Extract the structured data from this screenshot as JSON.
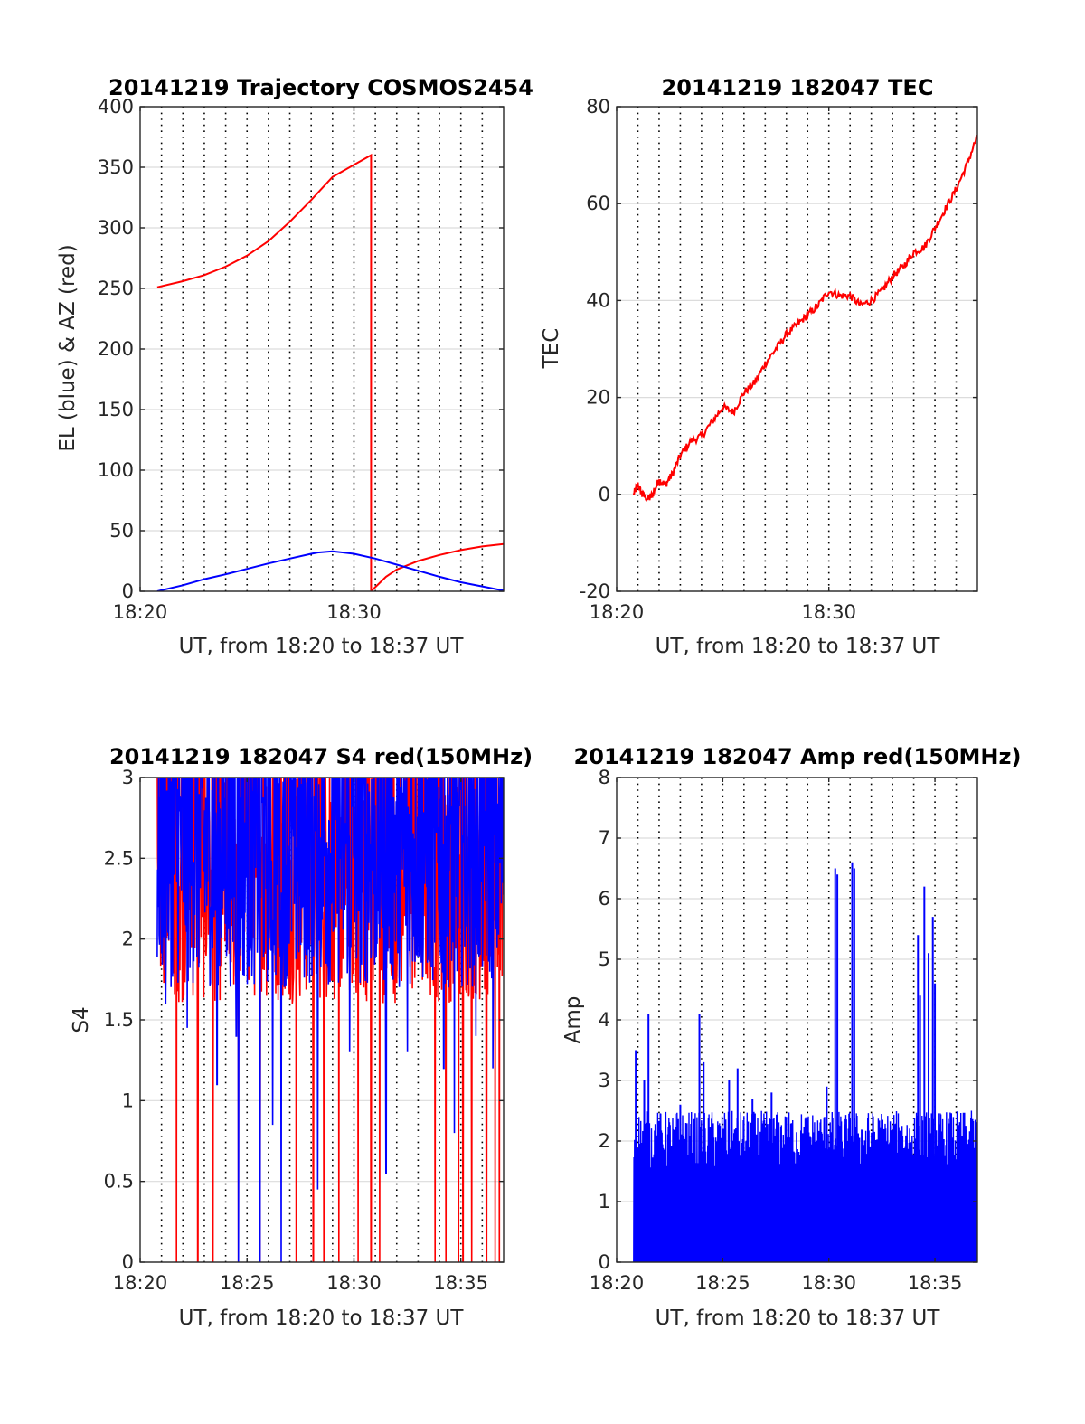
{
  "chart_data": [
    {
      "type": "line",
      "title": "20141219 Trajectory COSMOS2454",
      "xlabel": "UT, from 18:20 to 18:37 UT",
      "ylabel": "EL (blue) & AZ (red)",
      "xlim_minutes": [
        1100,
        1117
      ],
      "ylim": [
        0,
        400
      ],
      "xticks": [
        {
          "value": 1100,
          "label": "18:20"
        },
        {
          "value": 1110,
          "label": "18:30"
        }
      ],
      "yticks": [
        {
          "value": 0,
          "label": "0"
        },
        {
          "value": 50,
          "label": "50"
        },
        {
          "value": 100,
          "label": "100"
        },
        {
          "value": 150,
          "label": "150"
        },
        {
          "value": 200,
          "label": "200"
        },
        {
          "value": 250,
          "label": "250"
        },
        {
          "value": 300,
          "label": "300"
        },
        {
          "value": 350,
          "label": "350"
        },
        {
          "value": 400,
          "label": "400"
        }
      ],
      "grid": "horizontal solid, vertical dotted every 1 minute",
      "series": [
        {
          "color": "#ff0000",
          "x": [
            1100.8,
            1102,
            1103,
            1104,
            1105,
            1106,
            1107,
            1108,
            1109,
            1110,
            1110.8,
            1110.8,
            1111.5,
            1112,
            1113,
            1114,
            1115,
            1116,
            1117
          ],
          "y": [
            251,
            256,
            261,
            268,
            277,
            289,
            305,
            323,
            342,
            352,
            360,
            0,
            12,
            18,
            25,
            30,
            34,
            37,
            39
          ]
        },
        {
          "color": "#0000ff",
          "x": [
            1100.8,
            1102,
            1103,
            1104,
            1105,
            1106,
            1107,
            1108,
            1108.3,
            1109,
            1110,
            1111,
            1112,
            1113,
            1114,
            1115,
            1116,
            1117
          ],
          "y": [
            0,
            5,
            10,
            14,
            18.5,
            23,
            27,
            31,
            32,
            33,
            31,
            27,
            22,
            17,
            12,
            7.5,
            4,
            0.5
          ]
        }
      ]
    },
    {
      "type": "line",
      "title": "20141219 182047 TEC",
      "xlabel": "UT, from 18:20 to 18:37 UT",
      "ylabel": "TEC",
      "xlim_minutes": [
        1100,
        1117
      ],
      "ylim": [
        -20,
        80
      ],
      "xticks": [
        {
          "value": 1100,
          "label": "18:20"
        },
        {
          "value": 1110,
          "label": "18:30"
        }
      ],
      "yticks": [
        {
          "value": -20,
          "label": "-20"
        },
        {
          "value": 0,
          "label": "0"
        },
        {
          "value": 20,
          "label": "20"
        },
        {
          "value": 40,
          "label": "40"
        },
        {
          "value": 60,
          "label": "60"
        },
        {
          "value": 80,
          "label": "80"
        }
      ],
      "grid": "horizontal solid, vertical dotted every 1 minute",
      "series": [
        {
          "color": "#ff0000",
          "x": [
            1100.8,
            1101,
            1101.2,
            1101.5,
            1101.7,
            1102,
            1102.3,
            1102.6,
            1103,
            1103.5,
            1104,
            1104.5,
            1105,
            1105.5,
            1106,
            1106.5,
            1107,
            1107.5,
            1108,
            1108.5,
            1109,
            1109.5,
            1110,
            1110.5,
            1111,
            1111.5,
            1112,
            1112.5,
            1113,
            1113.5,
            1114,
            1114.5,
            1115,
            1115.5,
            1116,
            1116.5,
            1117
          ],
          "y": [
            0,
            2,
            0,
            -1,
            0,
            3,
            2,
            4,
            8,
            11,
            12,
            15,
            18,
            17,
            21,
            23,
            27,
            30,
            33,
            35,
            37,
            39,
            42,
            41,
            41,
            39,
            40,
            42,
            45,
            47,
            50,
            51,
            55,
            59,
            63,
            68,
            74
          ]
        }
      ]
    },
    {
      "type": "line",
      "title": "20141219 182047 S4 red(150MHz)",
      "xlabel": "UT, from 18:20 to 18:37 UT",
      "ylabel": "S4",
      "xlim_minutes": [
        1100,
        1117
      ],
      "ylim": [
        0,
        3
      ],
      "xticks": [
        {
          "value": 1100,
          "label": "18:20"
        },
        {
          "value": 1105,
          "label": "18:25"
        },
        {
          "value": 1110,
          "label": "18:30"
        },
        {
          "value": 1115,
          "label": "18:35"
        }
      ],
      "yticks": [
        {
          "value": 0,
          "label": "0"
        },
        {
          "value": 0.5,
          "label": "0.5"
        },
        {
          "value": 1,
          "label": "1"
        },
        {
          "value": 1.5,
          "label": "1.5"
        },
        {
          "value": 2,
          "label": "2"
        },
        {
          "value": 2.5,
          "label": "2.5"
        },
        {
          "value": 3,
          "label": "3"
        }
      ],
      "grid": "horizontal solid, vertical dotted every 1 minute",
      "series": [
        {
          "color": "#ff0000",
          "time_range": [
            1100.8,
            1117
          ],
          "typical_range": [
            1.6,
            3.0
          ],
          "dropouts_to_zero_at": [
            1101.7,
            1102.7,
            1103.4,
            1104.6,
            1105.6,
            1107.3,
            1108.1,
            1108.6,
            1109.3,
            1110.2,
            1110.8,
            1111.2,
            1113.8,
            1114.3,
            1114.9,
            1115.1,
            1115.5,
            1116.2,
            1116.6,
            1116.8
          ]
        },
        {
          "color": "#0000ff",
          "time_range": [
            1100.8,
            1117
          ],
          "typical_range": [
            1.7,
            3.0
          ],
          "dips": [
            {
              "x": 1101.2,
              "y": 1.6
            },
            {
              "x": 1102.2,
              "y": 1.45
            },
            {
              "x": 1103.6,
              "y": 1.1
            },
            {
              "x": 1104.5,
              "y": 1.4
            },
            {
              "x": 1104.6,
              "y": 0.0
            },
            {
              "x": 1105.6,
              "y": 0.0
            },
            {
              "x": 1106.2,
              "y": 0.85
            },
            {
              "x": 1106.6,
              "y": 0.0
            },
            {
              "x": 1108.3,
              "y": 0.45
            },
            {
              "x": 1109.8,
              "y": 1.3
            },
            {
              "x": 1111.5,
              "y": 0.55
            },
            {
              "x": 1112.5,
              "y": 1.3
            },
            {
              "x": 1114.2,
              "y": 1.2
            },
            {
              "x": 1114.7,
              "y": 0.8
            },
            {
              "x": 1115.7,
              "y": 1.4
            },
            {
              "x": 1116.5,
              "y": 1.2
            }
          ]
        }
      ]
    },
    {
      "type": "line",
      "title": "20141219 182047 Amp red(150MHz)",
      "xlabel": "UT, from 18:20 to 18:37 UT",
      "ylabel": "Amp",
      "xlim_minutes": [
        1100,
        1117
      ],
      "ylim": [
        0,
        8
      ],
      "xticks": [
        {
          "value": 1100,
          "label": "18:20"
        },
        {
          "value": 1105,
          "label": "18:25"
        },
        {
          "value": 1110,
          "label": "18:30"
        },
        {
          "value": 1115,
          "label": "18:35"
        }
      ],
      "yticks": [
        {
          "value": 0,
          "label": "0"
        },
        {
          "value": 1,
          "label": "1"
        },
        {
          "value": 2,
          "label": "2"
        },
        {
          "value": 3,
          "label": "3"
        },
        {
          "value": 4,
          "label": "4"
        },
        {
          "value": 5,
          "label": "5"
        },
        {
          "value": 6,
          "label": "6"
        },
        {
          "value": 7,
          "label": "7"
        },
        {
          "value": 8,
          "label": "8"
        }
      ],
      "grid": "horizontal solid, vertical dotted every 1 minute",
      "series": [
        {
          "color": "#0000ff",
          "time_range": [
            1100.8,
            1117
          ],
          "baseline_peak_range": [
            1.5,
            2.5
          ],
          "spikes": [
            {
              "x": 1100.9,
              "y": 3.5
            },
            {
              "x": 1101.3,
              "y": 3.0
            },
            {
              "x": 1101.5,
              "y": 4.1
            },
            {
              "x": 1103.0,
              "y": 2.6
            },
            {
              "x": 1103.9,
              "y": 4.1
            },
            {
              "x": 1104.1,
              "y": 3.3
            },
            {
              "x": 1105.3,
              "y": 3.0
            },
            {
              "x": 1105.7,
              "y": 3.2
            },
            {
              "x": 1106.4,
              "y": 2.7
            },
            {
              "x": 1107.3,
              "y": 2.8
            },
            {
              "x": 1109.9,
              "y": 2.9
            },
            {
              "x": 1110.3,
              "y": 6.5
            },
            {
              "x": 1110.4,
              "y": 6.4
            },
            {
              "x": 1111.1,
              "y": 6.6
            },
            {
              "x": 1111.2,
              "y": 6.5
            },
            {
              "x": 1114.2,
              "y": 5.4
            },
            {
              "x": 1114.3,
              "y": 4.4
            },
            {
              "x": 1114.5,
              "y": 6.2
            },
            {
              "x": 1114.7,
              "y": 5.1
            },
            {
              "x": 1114.9,
              "y": 5.7
            },
            {
              "x": 1115.0,
              "y": 4.6
            }
          ]
        }
      ]
    }
  ]
}
